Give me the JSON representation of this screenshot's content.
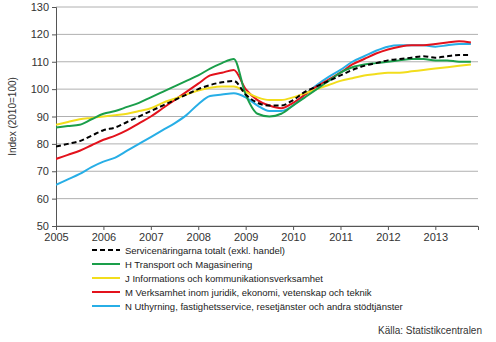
{
  "chart_data": {
    "type": "line",
    "y_label": "Index (2010=100)",
    "annotations": [
      "Källa: Statistikcentralen"
    ],
    "x": [
      2005,
      2005.25,
      2005.5,
      2005.75,
      2006,
      2006.25,
      2006.5,
      2006.75,
      2007,
      2007.25,
      2007.5,
      2007.75,
      2008,
      2008.25,
      2008.5,
      2008.75,
      2009,
      2009.25,
      2009.5,
      2009.75,
      2010,
      2010.25,
      2010.5,
      2010.75,
      2011,
      2011.25,
      2011.5,
      2011.75,
      2012,
      2012.25,
      2012.5,
      2012.75,
      2013,
      2013.25,
      2013.5,
      2013.75
    ],
    "xlim": [
      2005,
      2013.9
    ],
    "xticks": [
      2005,
      2006,
      2007,
      2008,
      2009,
      2010,
      2011,
      2012,
      2013
    ],
    "ylim": [
      50,
      130
    ],
    "yticks": [
      50,
      60,
      70,
      80,
      90,
      100,
      110,
      120,
      130
    ],
    "grid": true,
    "legend": "bottom",
    "series": [
      {
        "name": "Servicenäringarna totalt (exkl. handel)",
        "color": "#000000",
        "line_style": "dashed",
        "values": [
          79,
          80,
          81,
          83,
          85,
          86,
          88,
          90,
          92,
          94,
          96,
          98,
          100,
          101.5,
          102.5,
          103,
          98,
          95,
          94,
          94,
          96,
          99,
          101,
          103,
          105,
          107,
          108.5,
          109.5,
          110.5,
          111,
          111.5,
          112,
          111.5,
          112,
          112.5,
          112.5
        ]
      },
      {
        "name": "H Transport och Magasinering",
        "color": "#1a9e4a",
        "line_style": "solid",
        "values": [
          86,
          86.5,
          87,
          89,
          91,
          92,
          93.5,
          95,
          97,
          99,
          101,
          103,
          105,
          107.5,
          109.5,
          111,
          98,
          91,
          90,
          91,
          94,
          97,
          100,
          103,
          106,
          108,
          109,
          109.5,
          110,
          110.5,
          111,
          111,
          110.5,
          110.5,
          110,
          110
        ]
      },
      {
        "name": "J Informations och kommunikationsverksamhet",
        "color": "#f2dd1c",
        "line_style": "solid",
        "values": [
          87,
          88,
          89,
          89.5,
          90,
          90.5,
          91,
          92,
          93,
          95,
          96.5,
          98,
          99.5,
          100.5,
          101,
          101,
          99,
          97,
          96,
          96,
          97,
          98.5,
          100,
          101.5,
          103,
          104,
          105,
          105.5,
          106,
          106,
          106.5,
          107,
          107.5,
          108,
          108.5,
          109
        ]
      },
      {
        "name": "M Verksamhet inom juridik, ekonomi, vetenskap och teknik",
        "color": "#e3121c",
        "line_style": "solid",
        "values": [
          74.5,
          76,
          77.5,
          79.5,
          81.5,
          83,
          85,
          87.5,
          90,
          93,
          96,
          99,
          102,
          105,
          106,
          107,
          100,
          96,
          94,
          93,
          95,
          98,
          101,
          103.5,
          106,
          109,
          111,
          113,
          114.5,
          115.5,
          116,
          116,
          116.5,
          117,
          117.5,
          117
        ]
      },
      {
        "name": "N Uthyrning, fastighetsservice, resetjänster och andra stödtjänster",
        "color": "#27aee6",
        "line_style": "solid",
        "values": [
          65,
          67,
          69,
          71.5,
          73.5,
          75,
          77.5,
          80,
          82.5,
          85,
          87.5,
          90.5,
          94.5,
          97.5,
          98,
          98.5,
          97,
          94,
          92,
          92,
          94,
          98,
          101.5,
          104.5,
          107,
          110,
          112,
          114,
          115.5,
          116,
          116,
          116,
          115.5,
          116,
          116.5,
          116.5
        ]
      }
    ]
  }
}
